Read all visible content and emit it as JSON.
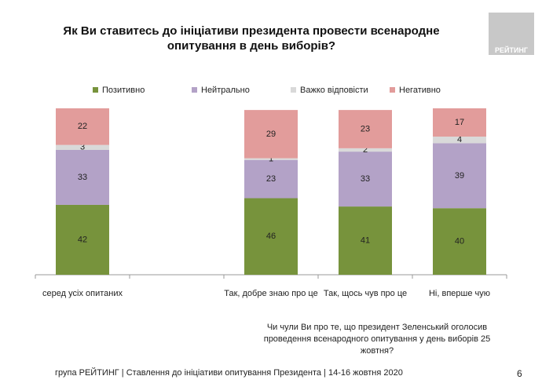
{
  "chart_data": {
    "type": "stacked_bar",
    "title": "Як Ви ставитесь до ініціативи президента провести всенародне опитування в день виборів?",
    "x_label": "Чи чули Ви про те, що президент Зеленський оголосив проведення всенародного опитування у день виборів 25 жовтня?",
    "categories": [
      "серед усіх опитаних",
      null,
      "Так, добре знаю про це",
      "Так, щось чув про це",
      "Ні, вперше чую"
    ],
    "series": [
      {
        "name": "Позитивно",
        "color": "#77933c",
        "values": [
          42,
          null,
          46,
          41,
          40
        ]
      },
      {
        "name": "Нейтрально",
        "color": "#b3a2c7",
        "values": [
          33,
          null,
          23,
          33,
          39
        ]
      },
      {
        "name": "Важко відповісти",
        "color": "#d9d9d9",
        "values": [
          3,
          null,
          1,
          2,
          4
        ]
      },
      {
        "name": "Негативно",
        "color": "#e29c9b",
        "values": [
          22,
          null,
          29,
          23,
          17
        ]
      }
    ],
    "ylim": [
      0,
      100
    ]
  },
  "logo": "РЕЙТИНГ",
  "footer": "група РЕЙТИНГ | Ставлення до ініціативи опитування Президента | 14-16 жовтня 2020",
  "page_number": "6"
}
